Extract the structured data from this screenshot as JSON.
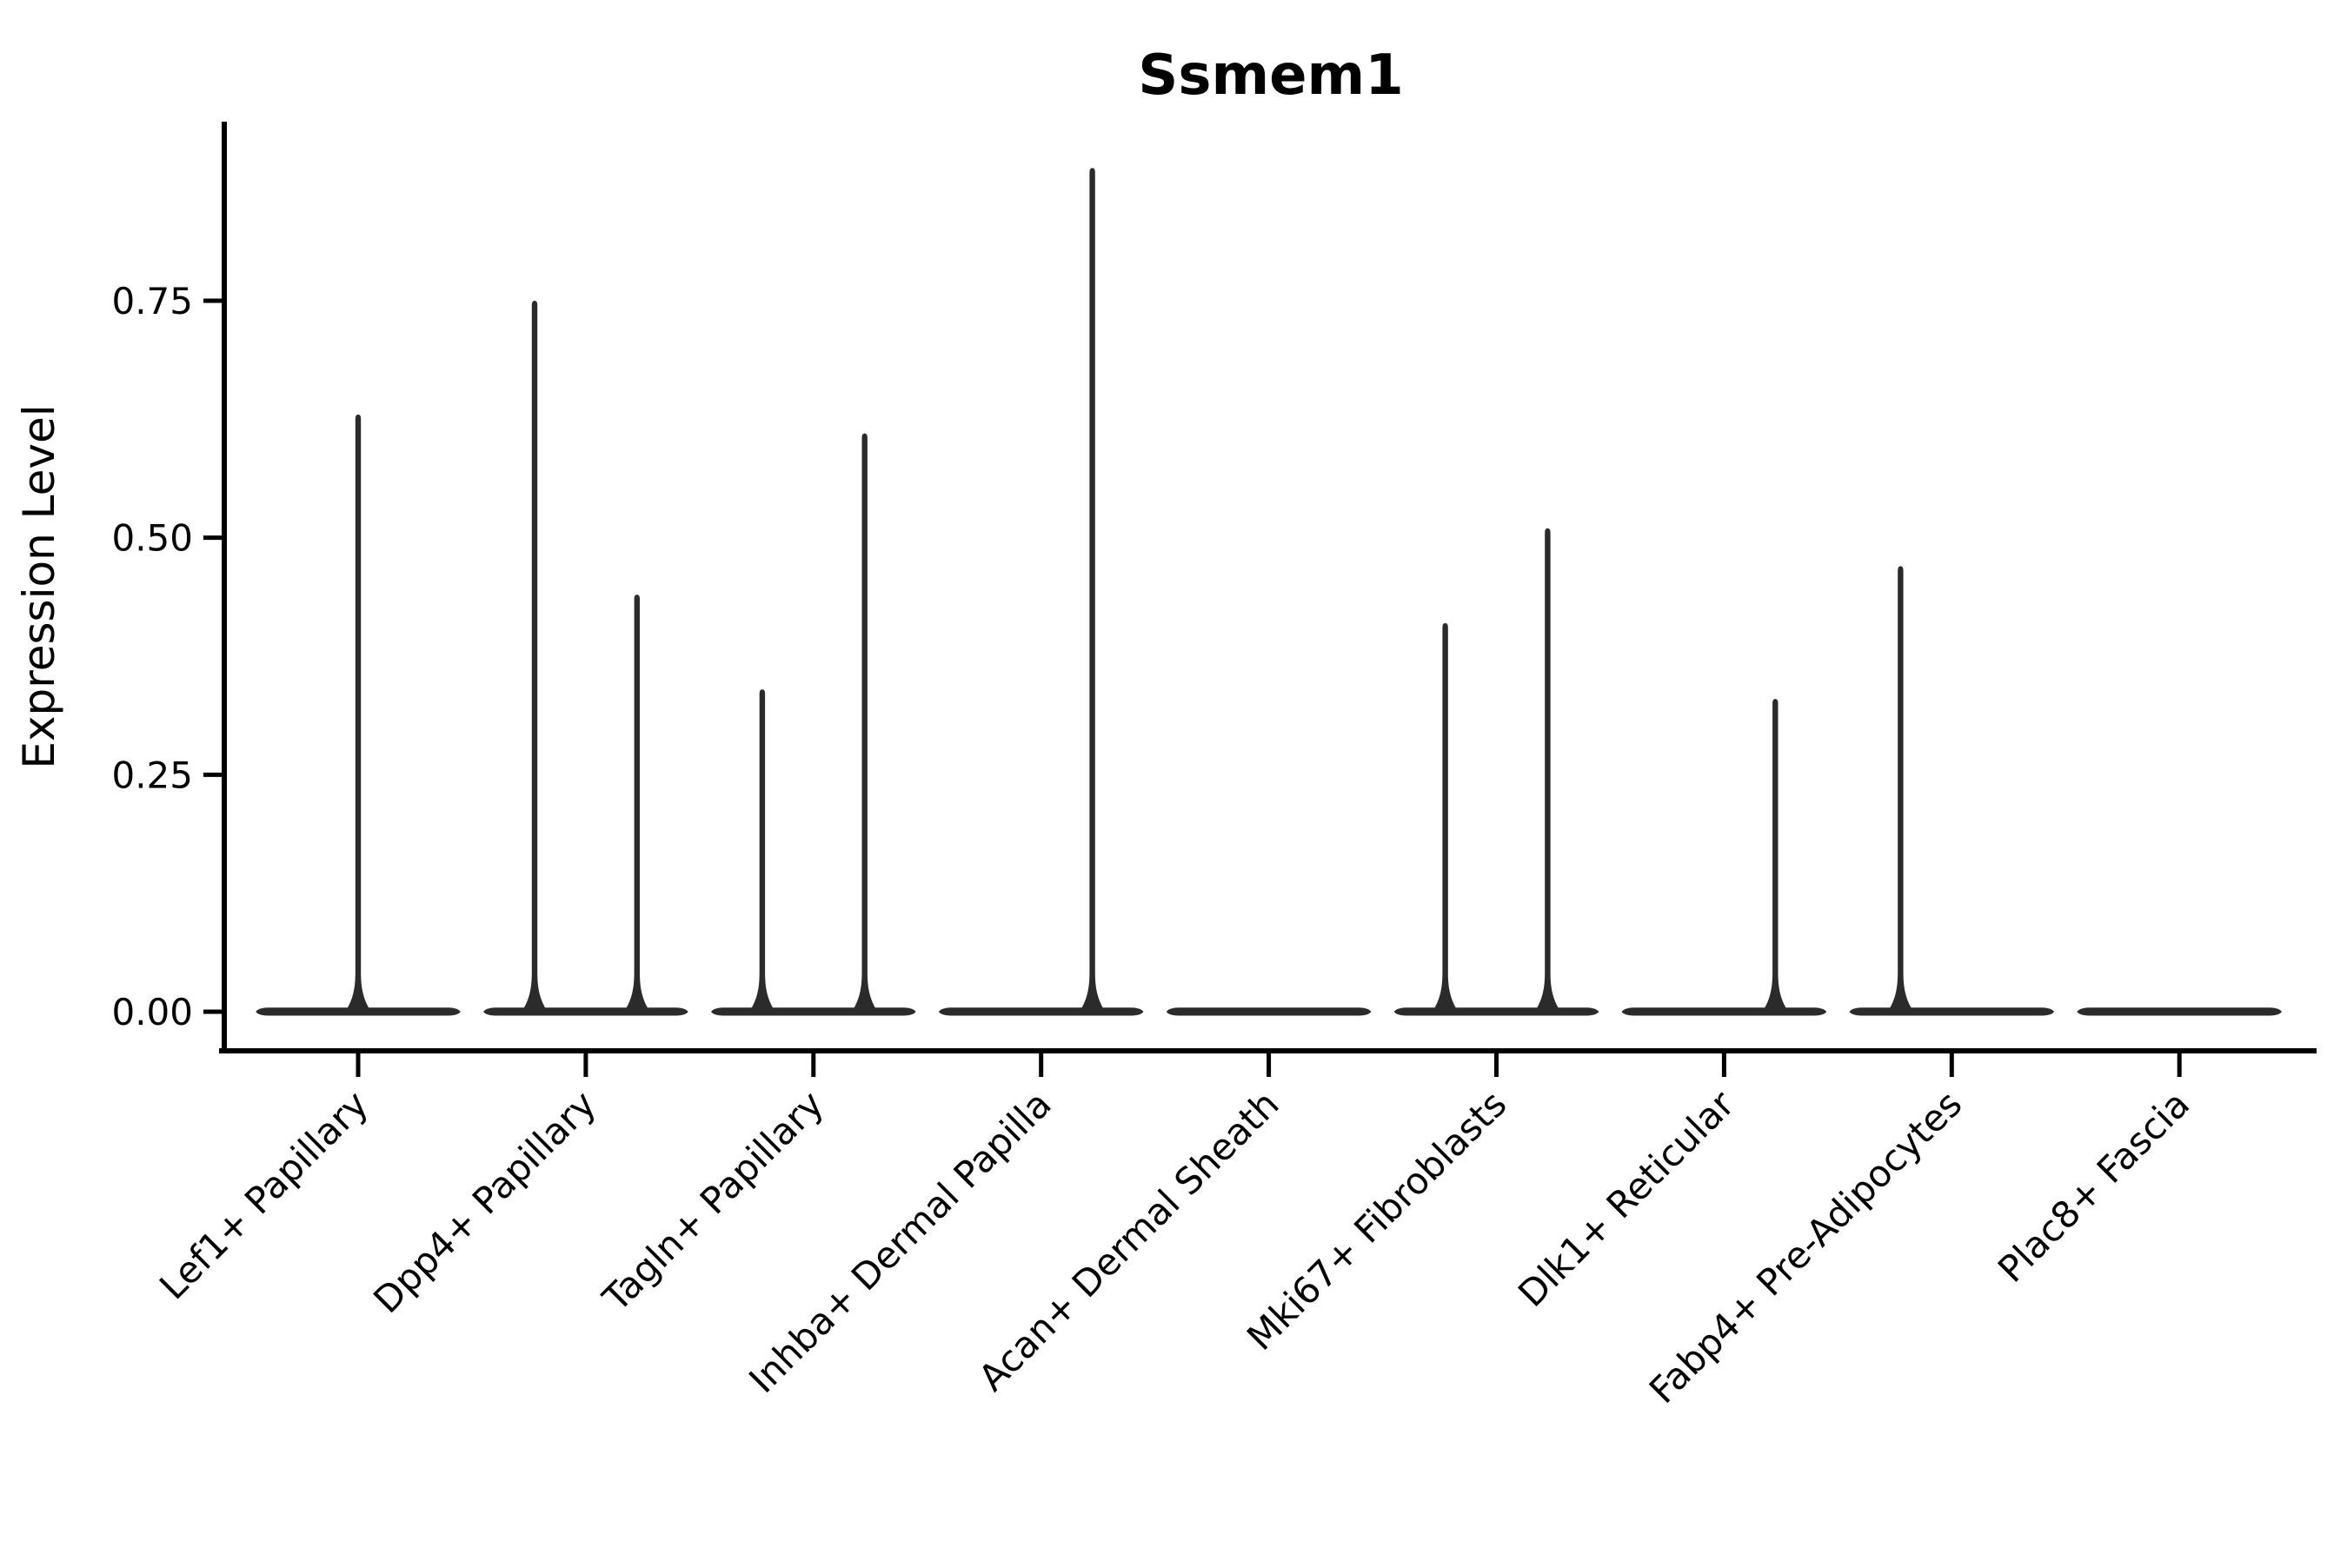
{
  "chart_data": {
    "type": "violin",
    "title": "Ssmem1",
    "ylabel": "Expression Level",
    "xlabel": "",
    "y_tick_values": [
      0.0,
      0.25,
      0.5,
      0.75
    ],
    "y_tick_labels": [
      "0.00",
      "0.25",
      "0.50",
      "0.75"
    ],
    "ylim": [
      -0.045,
      0.935
    ],
    "grid": false,
    "legend": "none",
    "categories": [
      "Lef1+ Papillary",
      "Dpp4+ Papillary",
      "Tagln+ Papillary",
      "Inhba+ Dermal Papilla",
      "Acan+ Dermal Sheath",
      "Mki67+ Fibroblasts",
      "Dlk1+ Reticular",
      "Fabp4+ Pre-Adipocytes",
      "Plac8+ Fascia"
    ],
    "series": [
      {
        "name": "Lef1+ Papillary",
        "zero_mass": true,
        "spikes": [
          {
            "dodge": "center",
            "max": 0.63
          }
        ]
      },
      {
        "name": "Dpp4+ Papillary",
        "zero_mass": true,
        "spikes": [
          {
            "dodge": "left",
            "max": 0.75
          },
          {
            "dodge": "right",
            "max": 0.44
          }
        ]
      },
      {
        "name": "Tagln+ Papillary",
        "zero_mass": true,
        "spikes": [
          {
            "dodge": "left",
            "max": 0.34
          },
          {
            "dodge": "right",
            "max": 0.61
          }
        ]
      },
      {
        "name": "Inhba+ Dermal Papilla",
        "zero_mass": true,
        "spikes": [
          {
            "dodge": "right",
            "max": 0.89
          }
        ]
      },
      {
        "name": "Acan+ Dermal Sheath",
        "zero_mass": true,
        "spikes": []
      },
      {
        "name": "Mki67+ Fibroblasts",
        "zero_mass": true,
        "spikes": [
          {
            "dodge": "left",
            "max": 0.41
          },
          {
            "dodge": "right",
            "max": 0.51
          }
        ]
      },
      {
        "name": "Dlk1+ Reticular",
        "zero_mass": true,
        "spikes": [
          {
            "dodge": "right",
            "max": 0.33
          }
        ]
      },
      {
        "name": "Fabp4+ Pre-Adipocytes",
        "zero_mass": true,
        "spikes": [
          {
            "dodge": "left",
            "max": 0.47
          }
        ]
      },
      {
        "name": "Plac8+ Fascia",
        "zero_mass": true,
        "spikes": []
      }
    ],
    "colors": {
      "violin": "#2b2b2b",
      "axis": "#000000",
      "text": "#000000",
      "background": "#ffffff"
    }
  }
}
